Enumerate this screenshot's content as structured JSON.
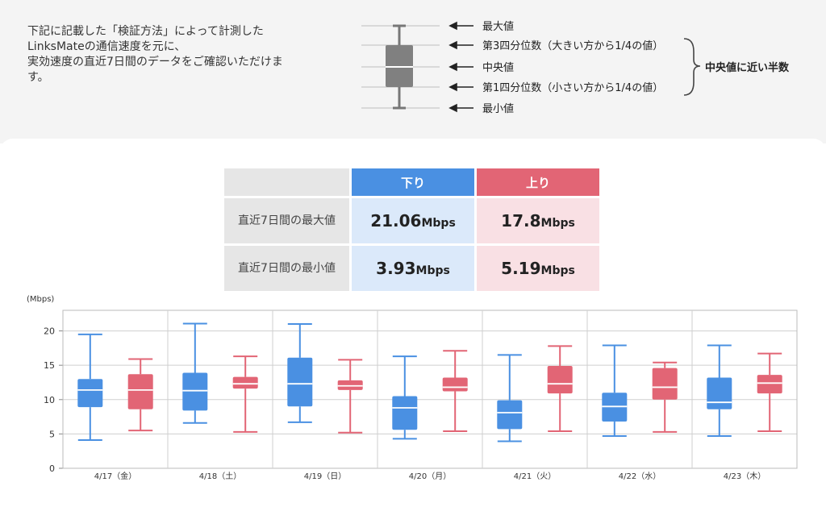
{
  "intro": {
    "lines": [
      "下記に記載した「検証方法」によって計測した",
      "LinksMateの通信速度を元に、",
      "実効速度の直近7日間のデータをご確認いただけま",
      "す。"
    ]
  },
  "legend": {
    "max_label": "最大値",
    "q3_label": "第3四分位数（大きい方から1/4の値）",
    "median_label": "中央値",
    "q1_label": "第1四分位数（小さい方から1/4の値）",
    "min_label": "最小値",
    "bracket_label": "中央値に近い半数"
  },
  "summary": {
    "header_down": "下り",
    "header_up": "上り",
    "rows": [
      {
        "label": "直近7日間の最大値",
        "down": "21.06",
        "up": "17.8"
      },
      {
        "label": "直近7日間の最小値",
        "down": "3.93",
        "up": "5.19"
      }
    ],
    "unit": "Mbps"
  },
  "colors": {
    "down": "#4a90e2",
    "up": "#e26575",
    "legend_box": "#808080"
  },
  "chart_data": {
    "type": "boxplot",
    "ylabel": "(Mbps)",
    "ylim": [
      0,
      23
    ],
    "yticks": [
      0,
      5,
      10,
      15,
      20
    ],
    "grid": true,
    "categories": [
      "4/17（金）",
      "4/18（土）",
      "4/19（日）",
      "4/20（月）",
      "4/21（火）",
      "4/22（水）",
      "4/23（木）"
    ],
    "series": [
      {
        "name": "下り",
        "color": "#4a90e2",
        "boxes": [
          {
            "min": 4.1,
            "q1": 8.9,
            "median": 11.4,
            "q3": 13.0,
            "max": 19.5
          },
          {
            "min": 6.6,
            "q1": 8.4,
            "median": 11.3,
            "q3": 13.9,
            "max": 21.06
          },
          {
            "min": 6.7,
            "q1": 9.0,
            "median": 12.3,
            "q3": 16.1,
            "max": 21.0
          },
          {
            "min": 4.3,
            "q1": 5.6,
            "median": 8.8,
            "q3": 10.5,
            "max": 16.3
          },
          {
            "min": 3.93,
            "q1": 5.7,
            "median": 8.1,
            "q3": 9.9,
            "max": 16.5
          },
          {
            "min": 4.7,
            "q1": 6.8,
            "median": 9.0,
            "q3": 11.0,
            "max": 17.9
          },
          {
            "min": 4.7,
            "q1": 8.6,
            "median": 9.6,
            "q3": 13.2,
            "max": 17.9
          }
        ]
      },
      {
        "name": "上り",
        "color": "#e26575",
        "boxes": [
          {
            "min": 5.5,
            "q1": 8.6,
            "median": 11.4,
            "q3": 13.7,
            "max": 15.9
          },
          {
            "min": 5.3,
            "q1": 11.6,
            "median": 12.3,
            "q3": 13.3,
            "max": 16.3
          },
          {
            "min": 5.19,
            "q1": 11.4,
            "median": 12.0,
            "q3": 12.8,
            "max": 15.8
          },
          {
            "min": 5.4,
            "q1": 11.2,
            "median": 11.8,
            "q3": 13.2,
            "max": 17.1
          },
          {
            "min": 5.4,
            "q1": 10.9,
            "median": 12.3,
            "q3": 14.9,
            "max": 17.8
          },
          {
            "min": 5.3,
            "q1": 10.0,
            "median": 11.8,
            "q3": 14.6,
            "max": 15.4
          },
          {
            "min": 5.4,
            "q1": 10.9,
            "median": 12.4,
            "q3": 13.6,
            "max": 16.7
          }
        ]
      }
    ]
  }
}
